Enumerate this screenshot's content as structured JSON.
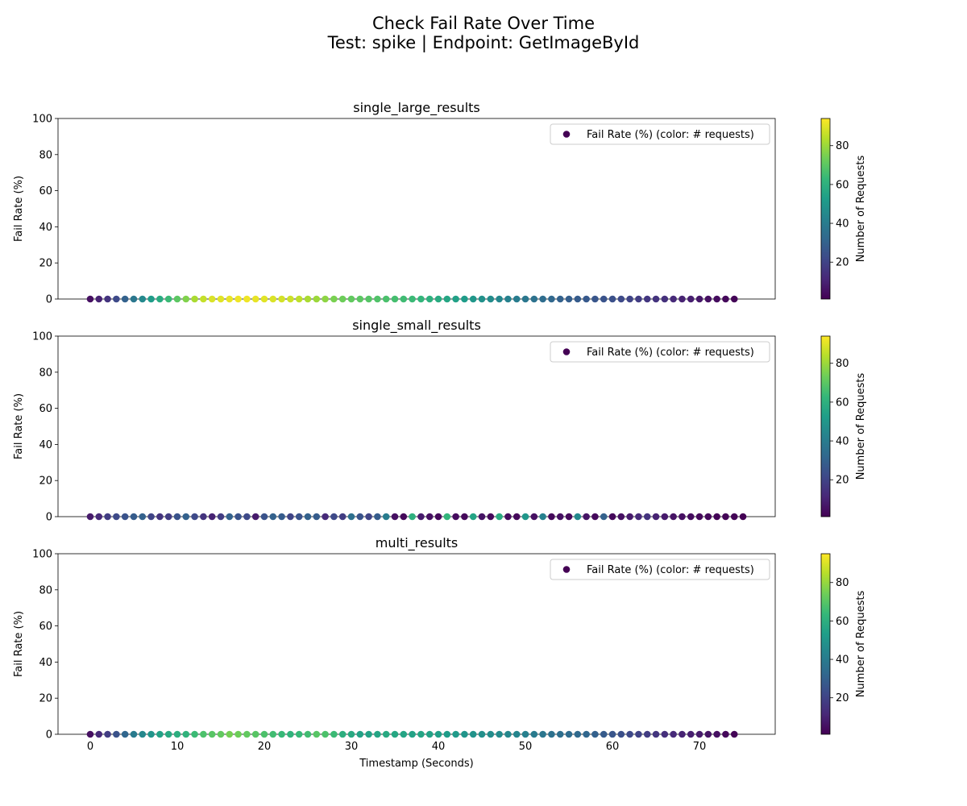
{
  "figure": {
    "title_line1": "Check Fail Rate Over Time",
    "title_line2": "Test: spike | Endpoint: GetImageById"
  },
  "colormap": "viridis",
  "colormap_stops": [
    "#440154",
    "#482878",
    "#3e4989",
    "#31688e",
    "#26828e",
    "#1f9e89",
    "#35b779",
    "#6ece58",
    "#b5de2b",
    "#fde725"
  ],
  "chart_data": [
    {
      "type": "scatter",
      "title": "single_large_results",
      "xlabel": "",
      "ylabel": "Fail Rate (%)",
      "xlim": [
        -3.7,
        78.7
      ],
      "ylim": [
        0,
        100
      ],
      "x_ticks": [
        0,
        10,
        20,
        30,
        40,
        50,
        60,
        70
      ],
      "y_ticks": [
        0,
        20,
        40,
        60,
        80,
        100
      ],
      "legend": "Fail Rate (%) (color: # requests)",
      "legend_position": "upper right",
      "colorbar_label": "Number of Requests",
      "colorbar_range": [
        1,
        94
      ],
      "colorbar_ticks": [
        20,
        40,
        60,
        80
      ],
      "series": [
        {
          "name": "Fail Rate (%) (color: # requests)",
          "x": [
            0,
            1,
            2,
            3,
            4,
            5,
            6,
            7,
            8,
            9,
            10,
            11,
            12,
            13,
            14,
            15,
            16,
            17,
            18,
            19,
            20,
            21,
            22,
            23,
            24,
            25,
            26,
            27,
            28,
            29,
            30,
            31,
            32,
            33,
            34,
            35,
            36,
            37,
            38,
            39,
            40,
            41,
            42,
            43,
            44,
            45,
            46,
            47,
            48,
            49,
            50,
            51,
            52,
            53,
            54,
            55,
            56,
            57,
            58,
            59,
            60,
            61,
            62,
            63,
            64,
            65,
            66,
            67,
            68,
            69,
            70,
            71,
            72,
            73,
            74
          ],
          "y": [
            0,
            0,
            0,
            0,
            0,
            0,
            0,
            0,
            0,
            0,
            0,
            0,
            0,
            0,
            0,
            0,
            0,
            0,
            0,
            0,
            0,
            0,
            0,
            0,
            0,
            0,
            0,
            0,
            0,
            0,
            0,
            0,
            0,
            0,
            0,
            0,
            0,
            0,
            0,
            0,
            0,
            0,
            0,
            0,
            0,
            0,
            0,
            0,
            0,
            0,
            0,
            0,
            0,
            0,
            0,
            0,
            0,
            0,
            0,
            0,
            0,
            0,
            0,
            0,
            0,
            0,
            0,
            0,
            0,
            0,
            0,
            0,
            0,
            0,
            0
          ],
          "requests": [
            5,
            10,
            15,
            22,
            30,
            38,
            45,
            52,
            58,
            64,
            70,
            76,
            82,
            86,
            89,
            90,
            91,
            92,
            92,
            91,
            90,
            89,
            88,
            87,
            85,
            82,
            80,
            78,
            75,
            73,
            71,
            70,
            69,
            68,
            67,
            66,
            65,
            64,
            62,
            60,
            58,
            56,
            54,
            52,
            50,
            48,
            46,
            44,
            42,
            40,
            38,
            36,
            34,
            32,
            30,
            29,
            28,
            27,
            26,
            25,
            24,
            22,
            20,
            18,
            16,
            15,
            14,
            12,
            10,
            9,
            7,
            5,
            4,
            3,
            2
          ]
        }
      ]
    },
    {
      "type": "scatter",
      "title": "single_small_results",
      "xlabel": "",
      "ylabel": "Fail Rate (%)",
      "xlim": [
        -3.7,
        78.7
      ],
      "ylim": [
        0,
        100
      ],
      "x_ticks": [
        0,
        10,
        20,
        30,
        40,
        50,
        60,
        70
      ],
      "y_ticks": [
        0,
        20,
        40,
        60,
        80,
        100
      ],
      "legend": "Fail Rate (%) (color: # requests)",
      "legend_position": "upper right",
      "colorbar_label": "Number of Requests",
      "colorbar_range": [
        1,
        94
      ],
      "colorbar_ticks": [
        20,
        40,
        60,
        80
      ],
      "series": [
        {
          "name": "Fail Rate (%) (color: # requests)",
          "x": [
            0,
            1,
            2,
            3,
            4,
            5,
            6,
            7,
            8,
            9,
            10,
            11,
            12,
            13,
            14,
            15,
            16,
            17,
            18,
            19,
            20,
            21,
            22,
            23,
            24,
            25,
            26,
            27,
            28,
            29,
            30,
            31,
            32,
            33,
            34,
            35,
            36,
            37,
            38,
            39,
            40,
            41,
            42,
            43,
            44,
            45,
            46,
            47,
            48,
            49,
            50,
            51,
            52,
            53,
            54,
            55,
            56,
            57,
            58,
            59,
            60,
            61,
            62,
            63,
            64,
            65,
            66,
            67,
            68,
            69,
            70,
            71,
            72,
            73,
            74,
            75
          ],
          "y": [
            0,
            0,
            0,
            0,
            0,
            0,
            0,
            0,
            0,
            0,
            0,
            0,
            0,
            0,
            0,
            0,
            0,
            0,
            0,
            0,
            0,
            0,
            0,
            0,
            0,
            0,
            0,
            0,
            0,
            0,
            0,
            0,
            0,
            0,
            0,
            0,
            0,
            0,
            0,
            0,
            0,
            0,
            0,
            0,
            0,
            0,
            0,
            0,
            0,
            0,
            0,
            0,
            0,
            0,
            0,
            0,
            0,
            0,
            0,
            0,
            0,
            0,
            0,
            0,
            0,
            0,
            0,
            0,
            0,
            0,
            0,
            0,
            0,
            0,
            0,
            0
          ],
          "requests": [
            8,
            12,
            18,
            22,
            25,
            28,
            30,
            20,
            15,
            18,
            25,
            30,
            22,
            15,
            10,
            18,
            30,
            25,
            22,
            8,
            25,
            30,
            28,
            20,
            25,
            30,
            28,
            12,
            22,
            18,
            35,
            25,
            20,
            28,
            40,
            5,
            3,
            60,
            8,
            5,
            3,
            62,
            4,
            3,
            55,
            6,
            3,
            58,
            4,
            3,
            50,
            5,
            42,
            3,
            5,
            3,
            45,
            6,
            3,
            30,
            3,
            5,
            8,
            12,
            15,
            10,
            8,
            6,
            5,
            4,
            3,
            3,
            2,
            2,
            2,
            1
          ]
        }
      ]
    },
    {
      "type": "scatter",
      "title": "multi_results",
      "xlabel": "Timestamp (Seconds)",
      "ylabel": "Fail Rate (%)",
      "xlim": [
        -3.7,
        78.7
      ],
      "ylim": [
        0,
        100
      ],
      "x_ticks": [
        0,
        10,
        20,
        30,
        40,
        50,
        60,
        70
      ],
      "y_ticks": [
        0,
        20,
        40,
        60,
        80,
        100
      ],
      "legend": "Fail Rate (%) (color: # requests)",
      "legend_position": "upper right",
      "colorbar_label": "Number of Requests",
      "colorbar_range": [
        1,
        95
      ],
      "colorbar_ticks": [
        20,
        40,
        60,
        80
      ],
      "series": [
        {
          "name": "Fail Rate (%) (color: # requests)",
          "x": [
            0,
            1,
            2,
            3,
            4,
            5,
            6,
            7,
            8,
            9,
            10,
            11,
            12,
            13,
            14,
            15,
            16,
            17,
            18,
            19,
            20,
            21,
            22,
            23,
            24,
            25,
            26,
            27,
            28,
            29,
            30,
            31,
            32,
            33,
            34,
            35,
            36,
            37,
            38,
            39,
            40,
            41,
            42,
            43,
            44,
            45,
            46,
            47,
            48,
            49,
            50,
            51,
            52,
            53,
            54,
            55,
            56,
            57,
            58,
            59,
            60,
            61,
            62,
            63,
            64,
            65,
            66,
            67,
            68,
            69,
            70,
            71,
            72,
            73,
            74
          ],
          "y": [
            0,
            0,
            0,
            0,
            0,
            0,
            0,
            0,
            0,
            0,
            0,
            0,
            0,
            0,
            0,
            0,
            0,
            0,
            0,
            0,
            0,
            0,
            0,
            0,
            0,
            0,
            0,
            0,
            0,
            0,
            0,
            0,
            0,
            0,
            0,
            0,
            0,
            0,
            0,
            0,
            0,
            0,
            0,
            0,
            0,
            0,
            0,
            0,
            0,
            0,
            0,
            0,
            0,
            0,
            0,
            0,
            0,
            0,
            0,
            0,
            0,
            0,
            0,
            0,
            0,
            0,
            0,
            0,
            0,
            0,
            0,
            0,
            0,
            0,
            0
          ],
          "requests": [
            5,
            12,
            18,
            25,
            32,
            40,
            45,
            50,
            55,
            58,
            60,
            62,
            65,
            68,
            70,
            72,
            75,
            74,
            72,
            70,
            68,
            66,
            64,
            62,
            64,
            66,
            70,
            68,
            65,
            60,
            58,
            55,
            55,
            56,
            58,
            57,
            56,
            55,
            56,
            55,
            54,
            53,
            52,
            50,
            49,
            48,
            47,
            46,
            45,
            44,
            42,
            40,
            38,
            36,
            35,
            34,
            33,
            32,
            30,
            28,
            26,
            24,
            22,
            20,
            18,
            16,
            14,
            12,
            10,
            9,
            8,
            6,
            5,
            3,
            2
          ]
        }
      ]
    }
  ]
}
